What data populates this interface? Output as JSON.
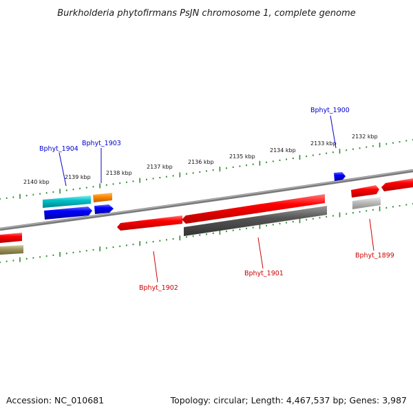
{
  "title": "Burkholderia phytofirmans PsJN chromosome 1, complete genome",
  "footer": {
    "accession": "Accession: NC_010681",
    "summary": "Topology: circular; Length: 4,467,537 bp; Genes: 3,987"
  },
  "ticks": [
    "2132 kbp",
    "2133 kbp",
    "2134 kbp",
    "2135 kbp",
    "2136 kbp",
    "2137 kbp",
    "2138 kbp",
    "2139 kbp",
    "2140 kbp"
  ],
  "genes": [
    {
      "name": "Bphyt_1899",
      "color": "#cc0000"
    },
    {
      "name": "Bphyt_1900",
      "color": "#0000cc"
    },
    {
      "name": "Bphyt_1901",
      "color": "#cc0000"
    },
    {
      "name": "Bphyt_1902",
      "color": "#cc0000"
    },
    {
      "name": "Bphyt_1903",
      "color": "#0000cc"
    },
    {
      "name": "Bphyt_1904",
      "color": "#0000cc"
    }
  ],
  "colors": {
    "backbone": "#808080",
    "tick": "#2e8b2e",
    "forward_red": "#ff0000",
    "blue": "#0000ff",
    "cyan": "#00c0c8",
    "orange": "#ff8c00",
    "dark_gray": "#555555",
    "light_gray": "#c0c0c0",
    "olive": "#a09860"
  }
}
